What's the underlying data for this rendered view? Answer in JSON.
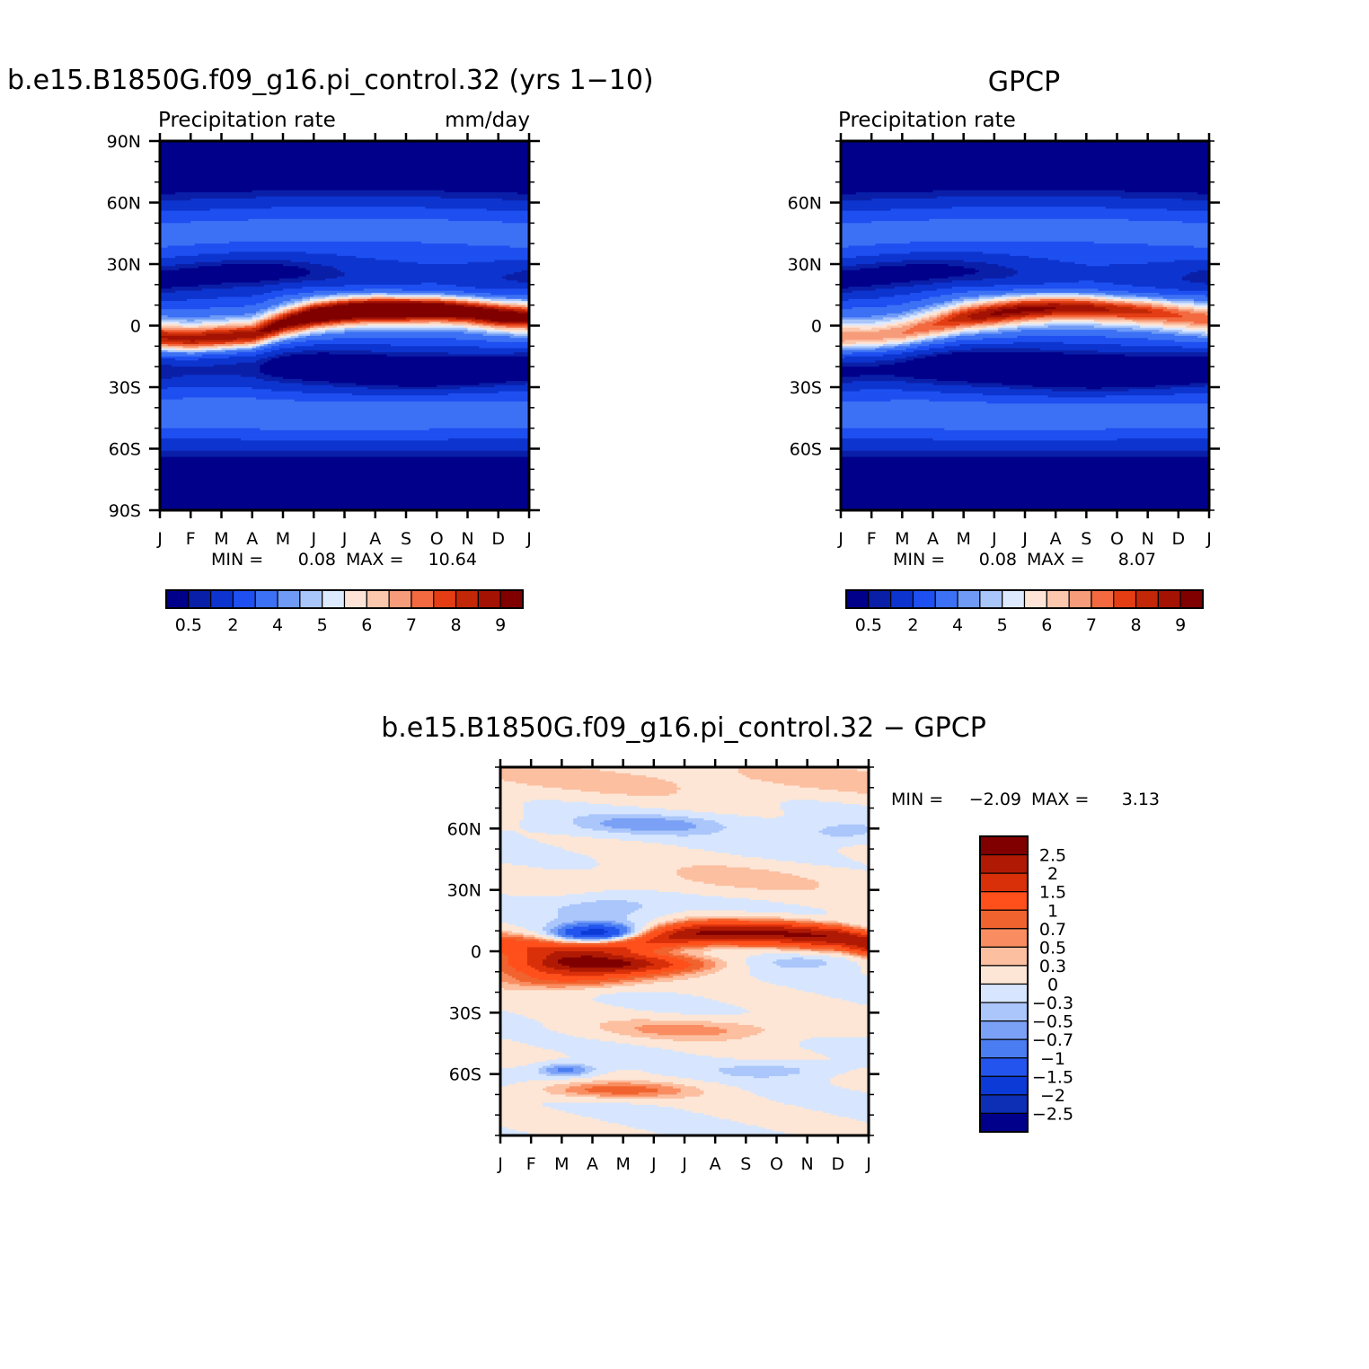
{
  "months": [
    "J",
    "F",
    "M",
    "A",
    "M",
    "J",
    "J",
    "A",
    "S",
    "O",
    "N",
    "D",
    "J"
  ],
  "abs_colors": [
    "#00008b",
    "#0a1fa8",
    "#0d34cf",
    "#1e4ff0",
    "#3c71f5",
    "#6f9bf7",
    "#a9c6fb",
    "#dde9fe",
    "#fde4d6",
    "#fbc7ad",
    "#f79c7b",
    "#f36a40",
    "#e43d14",
    "#c22807",
    "#a41204",
    "#800000"
  ],
  "diff_colors": [
    "#00008b",
    "#0d2fb5",
    "#0c3ad6",
    "#2355ee",
    "#4a7cf2",
    "#7ba1f6",
    "#aac6fb",
    "#d7e6fe",
    "#fde6d6",
    "#fcbfa0",
    "#f98d61",
    "#f1632e",
    "#ff4f1b",
    "#d9300a",
    "#b01a04",
    "#800000"
  ],
  "panels": {
    "model": {
      "title": "b.e15.B1850G.f09_g16.pi_control.32 (yrs 1−10)",
      "subtitle_left": "Precipitation  rate",
      "subtitle_right": "mm/day",
      "lat_labels": [
        "90N",
        "60N",
        "30N",
        "0",
        "30S",
        "60S",
        "90S"
      ],
      "min_text": "MIN =",
      "min_value": "0.08",
      "max_text": "MAX =",
      "max_value": "10.64",
      "colorbar_labels": [
        "0.5",
        "2",
        "4",
        "5",
        "6",
        "7",
        "8",
        "9"
      ]
    },
    "obs": {
      "title": "GPCP",
      "subtitle_left": "Precipitation  rate",
      "lat_labels": [
        "60N",
        "30N",
        "0",
        "30S",
        "60S"
      ],
      "min_text": "MIN =",
      "min_value": "0.08",
      "max_text": "MAX =",
      "max_value": "8.07",
      "colorbar_labels": [
        "0.5",
        "2",
        "4",
        "5",
        "6",
        "7",
        "8",
        "9"
      ]
    },
    "diff": {
      "title": "b.e15.B1850G.f09_g16.pi_control.32  −  GPCP",
      "lat_labels": [
        "60N",
        "30N",
        "0",
        "30S",
        "60S"
      ],
      "min_text": "MIN =",
      "min_value": "−2.09",
      "max_text": "MAX =",
      "max_value": "3.13",
      "colorbar_labels": [
        "2.5",
        "2",
        "1.5",
        "1",
        "0.7",
        "0.5",
        "0.3",
        "0",
        "−0.3",
        "−0.5",
        "−0.7",
        "−1",
        "−1.5",
        "−2",
        "−2.5"
      ]
    }
  },
  "chart_data": [
    {
      "type": "heatmap",
      "title": "b.e15.B1850G.f09_g16.pi_control.32 (yrs 1−10)",
      "subtitle": "Precipitation  rate",
      "units": "mm/day",
      "x": [
        "J",
        "F",
        "M",
        "A",
        "M",
        "J",
        "J",
        "A",
        "S",
        "O",
        "N",
        "D",
        "J"
      ],
      "y": [
        "90N",
        "60N",
        "30N",
        "0",
        "30S",
        "60S",
        "90S"
      ],
      "ylim": [
        -90,
        90
      ],
      "levels": [
        0.5,
        1,
        2,
        3,
        4,
        4.5,
        5,
        5.5,
        6,
        6.5,
        7,
        7.5,
        8,
        8.5,
        9
      ],
      "itcz_lat": [
        -6,
        -7,
        -6,
        -5,
        1,
        5,
        7,
        8,
        8,
        8,
        7,
        5,
        4
      ],
      "itcz_peak": [
        7.6,
        8.0,
        8.2,
        8.0,
        8.2,
        9.2,
        9.6,
        10.2,
        10.2,
        9.7,
        9.0,
        8.8,
        8.0
      ],
      "min": 0.08,
      "max": 10.64
    },
    {
      "type": "heatmap",
      "title": "GPCP",
      "subtitle": "Precipitation  rate",
      "x": [
        "J",
        "F",
        "M",
        "A",
        "M",
        "J",
        "J",
        "A",
        "S",
        "O",
        "N",
        "D",
        "J"
      ],
      "y": [
        "60N",
        "30N",
        "0",
        "30S",
        "60S"
      ],
      "ylim": [
        -90,
        90
      ],
      "levels": [
        0.5,
        1,
        2,
        3,
        4,
        4.5,
        5,
        5.5,
        6,
        6.5,
        7,
        7.5,
        8,
        8.5,
        9
      ],
      "itcz_lat": [
        -6,
        -6,
        -4,
        0,
        4,
        6,
        8,
        9,
        9,
        8,
        7,
        5,
        3
      ],
      "itcz_peak": [
        6.0,
        6.0,
        6.1,
        6.3,
        7.2,
        7.8,
        8.0,
        8.0,
        7.9,
        7.5,
        7.0,
        6.3,
        6.0
      ],
      "min": 0.08,
      "max": 8.07
    },
    {
      "type": "heatmap",
      "title": "b.e15.B1850G.f09_g16.pi_control.32  −  GPCP",
      "x": [
        "J",
        "F",
        "M",
        "A",
        "M",
        "J",
        "J",
        "A",
        "S",
        "O",
        "N",
        "D",
        "J"
      ],
      "y": [
        "60N",
        "30N",
        "0",
        "30S",
        "60S"
      ],
      "ylim": [
        -90,
        90
      ],
      "levels": [
        -2.5,
        -2,
        -1.5,
        -1,
        -0.7,
        -0.5,
        -0.3,
        0,
        0.3,
        0.5,
        0.7,
        1,
        1.5,
        2,
        2.5
      ],
      "min": -2.09,
      "max": 3.13
    }
  ]
}
